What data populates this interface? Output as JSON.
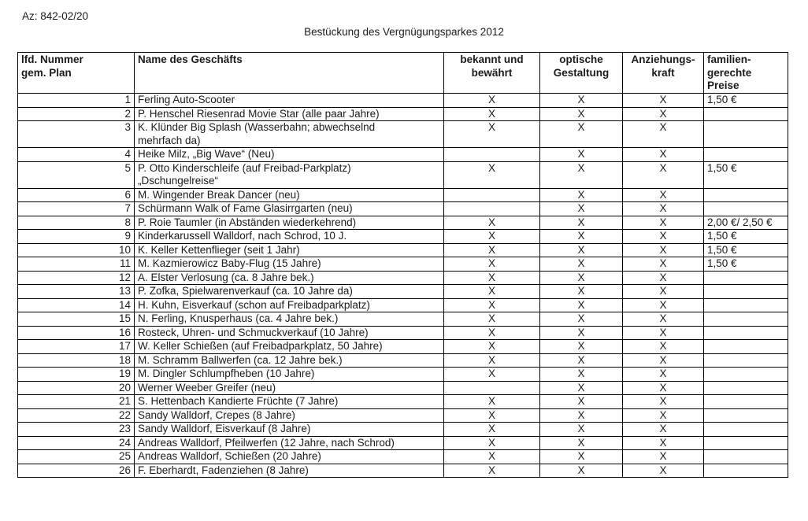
{
  "page": {
    "reference": "Az: 842-02/20",
    "title": "Bestückung des Vergnügungsparkes 2012"
  },
  "table": {
    "columns": [
      {
        "key": "num",
        "label": "lfd. Nummer\ngem. Plan"
      },
      {
        "key": "name",
        "label": "Name des Geschäfts"
      },
      {
        "key": "bekannt",
        "label": "bekannt und\nbewährt"
      },
      {
        "key": "optisch",
        "label": "optische\nGestaltung"
      },
      {
        "key": "anziehung",
        "label": "Anziehungs-\nkraft"
      },
      {
        "key": "preis",
        "label": "familien-\ngerechte\nPreise"
      }
    ],
    "rows": [
      {
        "num": "1",
        "name": "Ferling Auto-Scooter",
        "bekannt": "X",
        "optisch": "X",
        "anziehung": "X",
        "preis": "1,50 €"
      },
      {
        "num": "2",
        "name": "P. Henschel Riesenrad Movie Star (alle paar Jahre)",
        "bekannt": "X",
        "optisch": "X",
        "anziehung": "X",
        "preis": ""
      },
      {
        "num": "3",
        "name": "K. Klünder Big Splash (Wasserbahn; abwechselnd\nmehrfach da)",
        "bekannt": "X",
        "optisch": "X",
        "anziehung": "X",
        "preis": ""
      },
      {
        "num": "4",
        "name": "Heike Milz, „Big Wave“ (Neu)",
        "bekannt": "",
        "optisch": "X",
        "anziehung": "X",
        "preis": ""
      },
      {
        "num": "5",
        "name": "P. Otto Kinderschleife (auf Freibad-Parkplatz)\n„Dschungelreise“",
        "bekannt": "X",
        "optisch": "X",
        "anziehung": "X",
        "preis": "1,50 €"
      },
      {
        "num": "6",
        "name": "M. Wingender Break Dancer (neu)",
        "bekannt": "",
        "optisch": "X",
        "anziehung": "X",
        "preis": ""
      },
      {
        "num": "7",
        "name": "Schürmann Walk of Fame Glasirrgarten (neu)",
        "bekannt": "",
        "optisch": "X",
        "anziehung": "X",
        "preis": ""
      },
      {
        "num": "8",
        "name": "P. Roie Taumler (in Abständen wiederkehrend)",
        "bekannt": "X",
        "optisch": "X",
        "anziehung": "X",
        "preis": "2,00 €/ 2,50 €"
      },
      {
        "num": "9",
        "name": "Kinderkarussell Walldorf, nach Schrod, 10 J.",
        "bekannt": "X",
        "optisch": "X",
        "anziehung": "X",
        "preis": "1,50 €"
      },
      {
        "num": "10",
        "name": "K. Keller Kettenflieger (seit 1 Jahr)",
        "bekannt": "X",
        "optisch": "X",
        "anziehung": "X",
        "preis": "1,50 €"
      },
      {
        "num": "11",
        "name": "M. Kazmierowicz Baby-Flug (15 Jahre)",
        "bekannt": "X",
        "optisch": "X",
        "anziehung": "X",
        "preis": "1,50 €"
      },
      {
        "num": "12",
        "name": "A. Elster Verlosung (ca. 8 Jahre bek.)",
        "bekannt": "X",
        "optisch": "X",
        "anziehung": "X",
        "preis": ""
      },
      {
        "num": "13",
        "name": "P. Zofka, Spielwarenverkauf (ca. 10 Jahre da)",
        "bekannt": "X",
        "optisch": "X",
        "anziehung": "X",
        "preis": ""
      },
      {
        "num": "14",
        "name": "H. Kuhn, Eisverkauf (schon auf Freibadparkplatz)",
        "bekannt": "X",
        "optisch": "X",
        "anziehung": "X",
        "preis": ""
      },
      {
        "num": "15",
        "name": "N. Ferling, Knusperhaus (ca. 4 Jahre bek.)",
        "bekannt": "X",
        "optisch": "X",
        "anziehung": "X",
        "preis": ""
      },
      {
        "num": "16",
        "name": "Rosteck, Uhren- und Schmuckverkauf (10 Jahre)",
        "bekannt": "X",
        "optisch": "X",
        "anziehung": "X",
        "preis": ""
      },
      {
        "num": "17",
        "name": "W. Keller Schießen (auf Freibadparkplatz, 50 Jahre)",
        "bekannt": "X",
        "optisch": "X",
        "anziehung": "X",
        "preis": ""
      },
      {
        "num": "18",
        "name": "M. Schramm Ballwerfen (ca. 12 Jahre bek.)",
        "bekannt": "X",
        "optisch": "X",
        "anziehung": "X",
        "preis": ""
      },
      {
        "num": "19",
        "name": "M. Dingler Schlumpfheben (10 Jahre)",
        "bekannt": "X",
        "optisch": "X",
        "anziehung": "X",
        "preis": ""
      },
      {
        "num": "20",
        "name": "Werner Weeber Greifer (neu)",
        "bekannt": "",
        "optisch": "X",
        "anziehung": "X",
        "preis": ""
      },
      {
        "num": "21",
        "name": "S. Hettenbach Kandierte Früchte (7 Jahre)",
        "bekannt": "X",
        "optisch": "X",
        "anziehung": "X",
        "preis": ""
      },
      {
        "num": "22",
        "name": "Sandy Walldorf, Crepes (8 Jahre)",
        "bekannt": "X",
        "optisch": "X",
        "anziehung": "X",
        "preis": ""
      },
      {
        "num": "23",
        "name": "Sandy Walldorf, Eisverkauf (8 Jahre)",
        "bekannt": "X",
        "optisch": "X",
        "anziehung": "X",
        "preis": ""
      },
      {
        "num": "24",
        "name": "Andreas Walldorf, Pfeilwerfen (12 Jahre, nach Schrod)",
        "bekannt": "X",
        "optisch": "X",
        "anziehung": "X",
        "preis": ""
      },
      {
        "num": "25",
        "name": "Andreas Walldorf, Schießen (20 Jahre)",
        "bekannt": "X",
        "optisch": "X",
        "anziehung": "X",
        "preis": ""
      },
      {
        "num": "26",
        "name": "F. Eberhardt, Fadenziehen (8 Jahre)",
        "bekannt": "X",
        "optisch": "X",
        "anziehung": "X",
        "preis": ""
      }
    ]
  }
}
